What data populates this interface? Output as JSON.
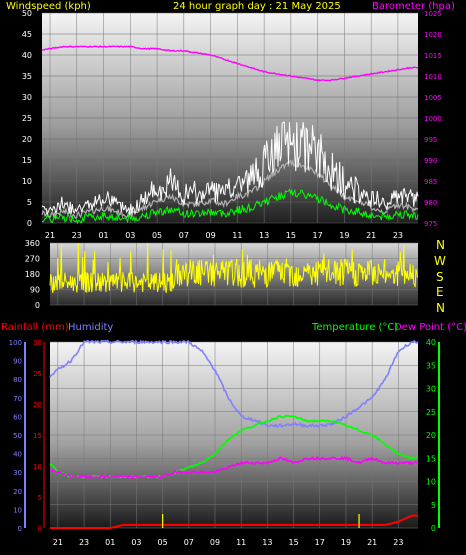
{
  "header": {
    "left_label": "Windspeed (kph)",
    "title": "24 hour graph day : 21 May 2025",
    "right_label": "Barometer (hpa)"
  },
  "lower_header": {
    "rainfall_label": "Rainfall (mm)",
    "humidity_label": "Humidity",
    "temperature_label": "Temperature (°C)",
    "dewpoint_label": "Dew Point (°C)"
  },
  "compass": [
    "N",
    "W",
    "S",
    "E",
    "N"
  ],
  "colors": {
    "wind_speed": "#ffffff",
    "wind_avg": "#c0c0c0",
    "gust": "#00ff00",
    "barometer": "#ff00ff",
    "direction": "#ffff00",
    "humidity": "#8080ff",
    "temperature": "#00ff00",
    "dewpoint": "#ff00ff",
    "rain": "#ff0000",
    "rain_rate": "#ffff00"
  },
  "chart_data": [
    {
      "type": "line",
      "name": "wind-barometer",
      "x_hours": [
        21,
        23,
        1,
        3,
        5,
        7,
        9,
        11,
        13,
        15,
        17,
        19,
        21,
        23
      ],
      "x_tick_labels": [
        "21",
        "23",
        "01",
        "03",
        "05",
        "07",
        "09",
        "11",
        "13",
        "15",
        "17",
        "19",
        "21",
        "23"
      ],
      "ylim_left": [
        0,
        50
      ],
      "yticks_left": [
        0,
        5,
        10,
        15,
        20,
        25,
        30,
        35,
        40,
        45,
        50
      ],
      "ylim_right": [
        975,
        1025
      ],
      "yticks_right": [
        975,
        980,
        985,
        990,
        995,
        1000,
        1005,
        1010,
        1015,
        1020,
        1025
      ],
      "series": [
        {
          "key": "windspeed",
          "x": [
            20,
            21,
            22,
            23,
            0,
            1,
            2,
            3,
            4,
            5,
            6,
            7,
            8,
            9,
            10,
            11,
            12,
            13,
            14,
            15,
            16,
            17,
            18,
            19,
            20,
            21,
            22,
            23,
            24
          ],
          "values": [
            3,
            2,
            3,
            2,
            3,
            4,
            3,
            2,
            4,
            6,
            7,
            5,
            5,
            6,
            5,
            7,
            8,
            11,
            14,
            16,
            15,
            13,
            10,
            7,
            6,
            4,
            3,
            5,
            4
          ]
        },
        {
          "key": "barometer",
          "x": [
            20,
            21,
            22,
            23,
            0,
            1,
            2,
            3,
            4,
            5,
            6,
            7,
            8,
            9,
            10,
            11,
            12,
            13,
            14,
            15,
            16,
            17,
            18,
            19,
            20,
            21,
            22,
            23,
            24
          ],
          "values": [
            1016,
            1016.5,
            1017,
            1017,
            1017,
            1017,
            1017,
            1017,
            1016.5,
            1016.5,
            1016,
            1016,
            1015.5,
            1015,
            1014,
            1013,
            1012,
            1011,
            1010.5,
            1010,
            1009.5,
            1009,
            1009,
            1009.5,
            1010,
            1010.5,
            1011,
            1011.5,
            1012
          ]
        }
      ]
    },
    {
      "type": "line",
      "name": "wind-direction",
      "ylim": [
        0,
        360
      ],
      "yticks": [
        0,
        90,
        180,
        270,
        360
      ],
      "x_tick_labels": [
        "21",
        "23",
        "01",
        "03",
        "05",
        "07",
        "09",
        "11",
        "13",
        "15",
        "17",
        "19",
        "21",
        "23"
      ]
    },
    {
      "type": "line",
      "name": "temperature-humidity-rain",
      "ylim_humidity": [
        0,
        100
      ],
      "yticks_humidity": [
        0,
        10,
        20,
        30,
        40,
        50,
        60,
        70,
        80,
        90,
        100
      ],
      "ylim_rain": [
        0,
        30
      ],
      "yticks_rain": [
        0,
        5,
        10,
        15,
        20,
        25,
        30
      ],
      "ylim_temp": [
        0,
        40
      ],
      "yticks_temp": [
        0,
        5,
        10,
        15,
        20,
        25,
        30,
        35,
        40
      ],
      "x_tick_labels": [
        "21",
        "23",
        "01",
        "03",
        "05",
        "07",
        "09",
        "11",
        "13",
        "15",
        "17",
        "19",
        "21",
        "23"
      ],
      "series": [
        {
          "key": "humidity",
          "x": [
            20,
            21,
            22,
            23,
            0,
            1,
            2,
            3,
            4,
            5,
            6,
            7,
            8,
            9,
            10,
            11,
            12,
            13,
            14,
            15,
            16,
            17,
            18,
            19,
            20,
            21,
            22,
            23,
            24
          ],
          "values": [
            80,
            85,
            90,
            100,
            100,
            100,
            100,
            100,
            100,
            100,
            100,
            100,
            95,
            85,
            70,
            60,
            58,
            55,
            55,
            56,
            55,
            55,
            56,
            60,
            65,
            70,
            80,
            95,
            100
          ]
        },
        {
          "key": "temperature",
          "x": [
            20,
            21,
            22,
            23,
            0,
            1,
            2,
            3,
            4,
            5,
            6,
            7,
            8,
            9,
            10,
            11,
            12,
            13,
            14,
            15,
            16,
            17,
            18,
            19,
            20,
            21,
            22,
            23,
            24
          ],
          "values": [
            15,
            12,
            11,
            11,
            11,
            11,
            11,
            11,
            11,
            11,
            12,
            13,
            14,
            16,
            19,
            21,
            22,
            23,
            24,
            24,
            23,
            23,
            23,
            22,
            21,
            20,
            18,
            16,
            15
          ]
        },
        {
          "key": "dewpoint",
          "x": [
            20,
            21,
            22,
            23,
            0,
            1,
            2,
            3,
            4,
            5,
            6,
            7,
            8,
            9,
            10,
            11,
            12,
            13,
            14,
            15,
            16,
            17,
            18,
            19,
            20,
            21,
            22,
            23,
            24
          ],
          "values": [
            13,
            12,
            11,
            11,
            11,
            11,
            11,
            11,
            11,
            11,
            12,
            12,
            12,
            12,
            13,
            14,
            14,
            14,
            15,
            14,
            15,
            15,
            15,
            15,
            14,
            15,
            14,
            14,
            14
          ]
        },
        {
          "key": "rainfall",
          "x": [
            20,
            21,
            22,
            23,
            0,
            1,
            2,
            3,
            4,
            5,
            6,
            7,
            8,
            9,
            10,
            11,
            12,
            13,
            14,
            15,
            16,
            17,
            18,
            19,
            20,
            21,
            22,
            23,
            24
          ],
          "values": [
            0,
            0,
            0,
            0,
            0,
            0,
            0.5,
            0.5,
            0.5,
            0.5,
            0.5,
            0.5,
            0.5,
            0.5,
            0.5,
            0.5,
            0.5,
            0.5,
            0.5,
            0.5,
            0.5,
            0.5,
            0.5,
            0.5,
            0.5,
            0.5,
            0.5,
            1,
            2
          ]
        }
      ]
    }
  ]
}
